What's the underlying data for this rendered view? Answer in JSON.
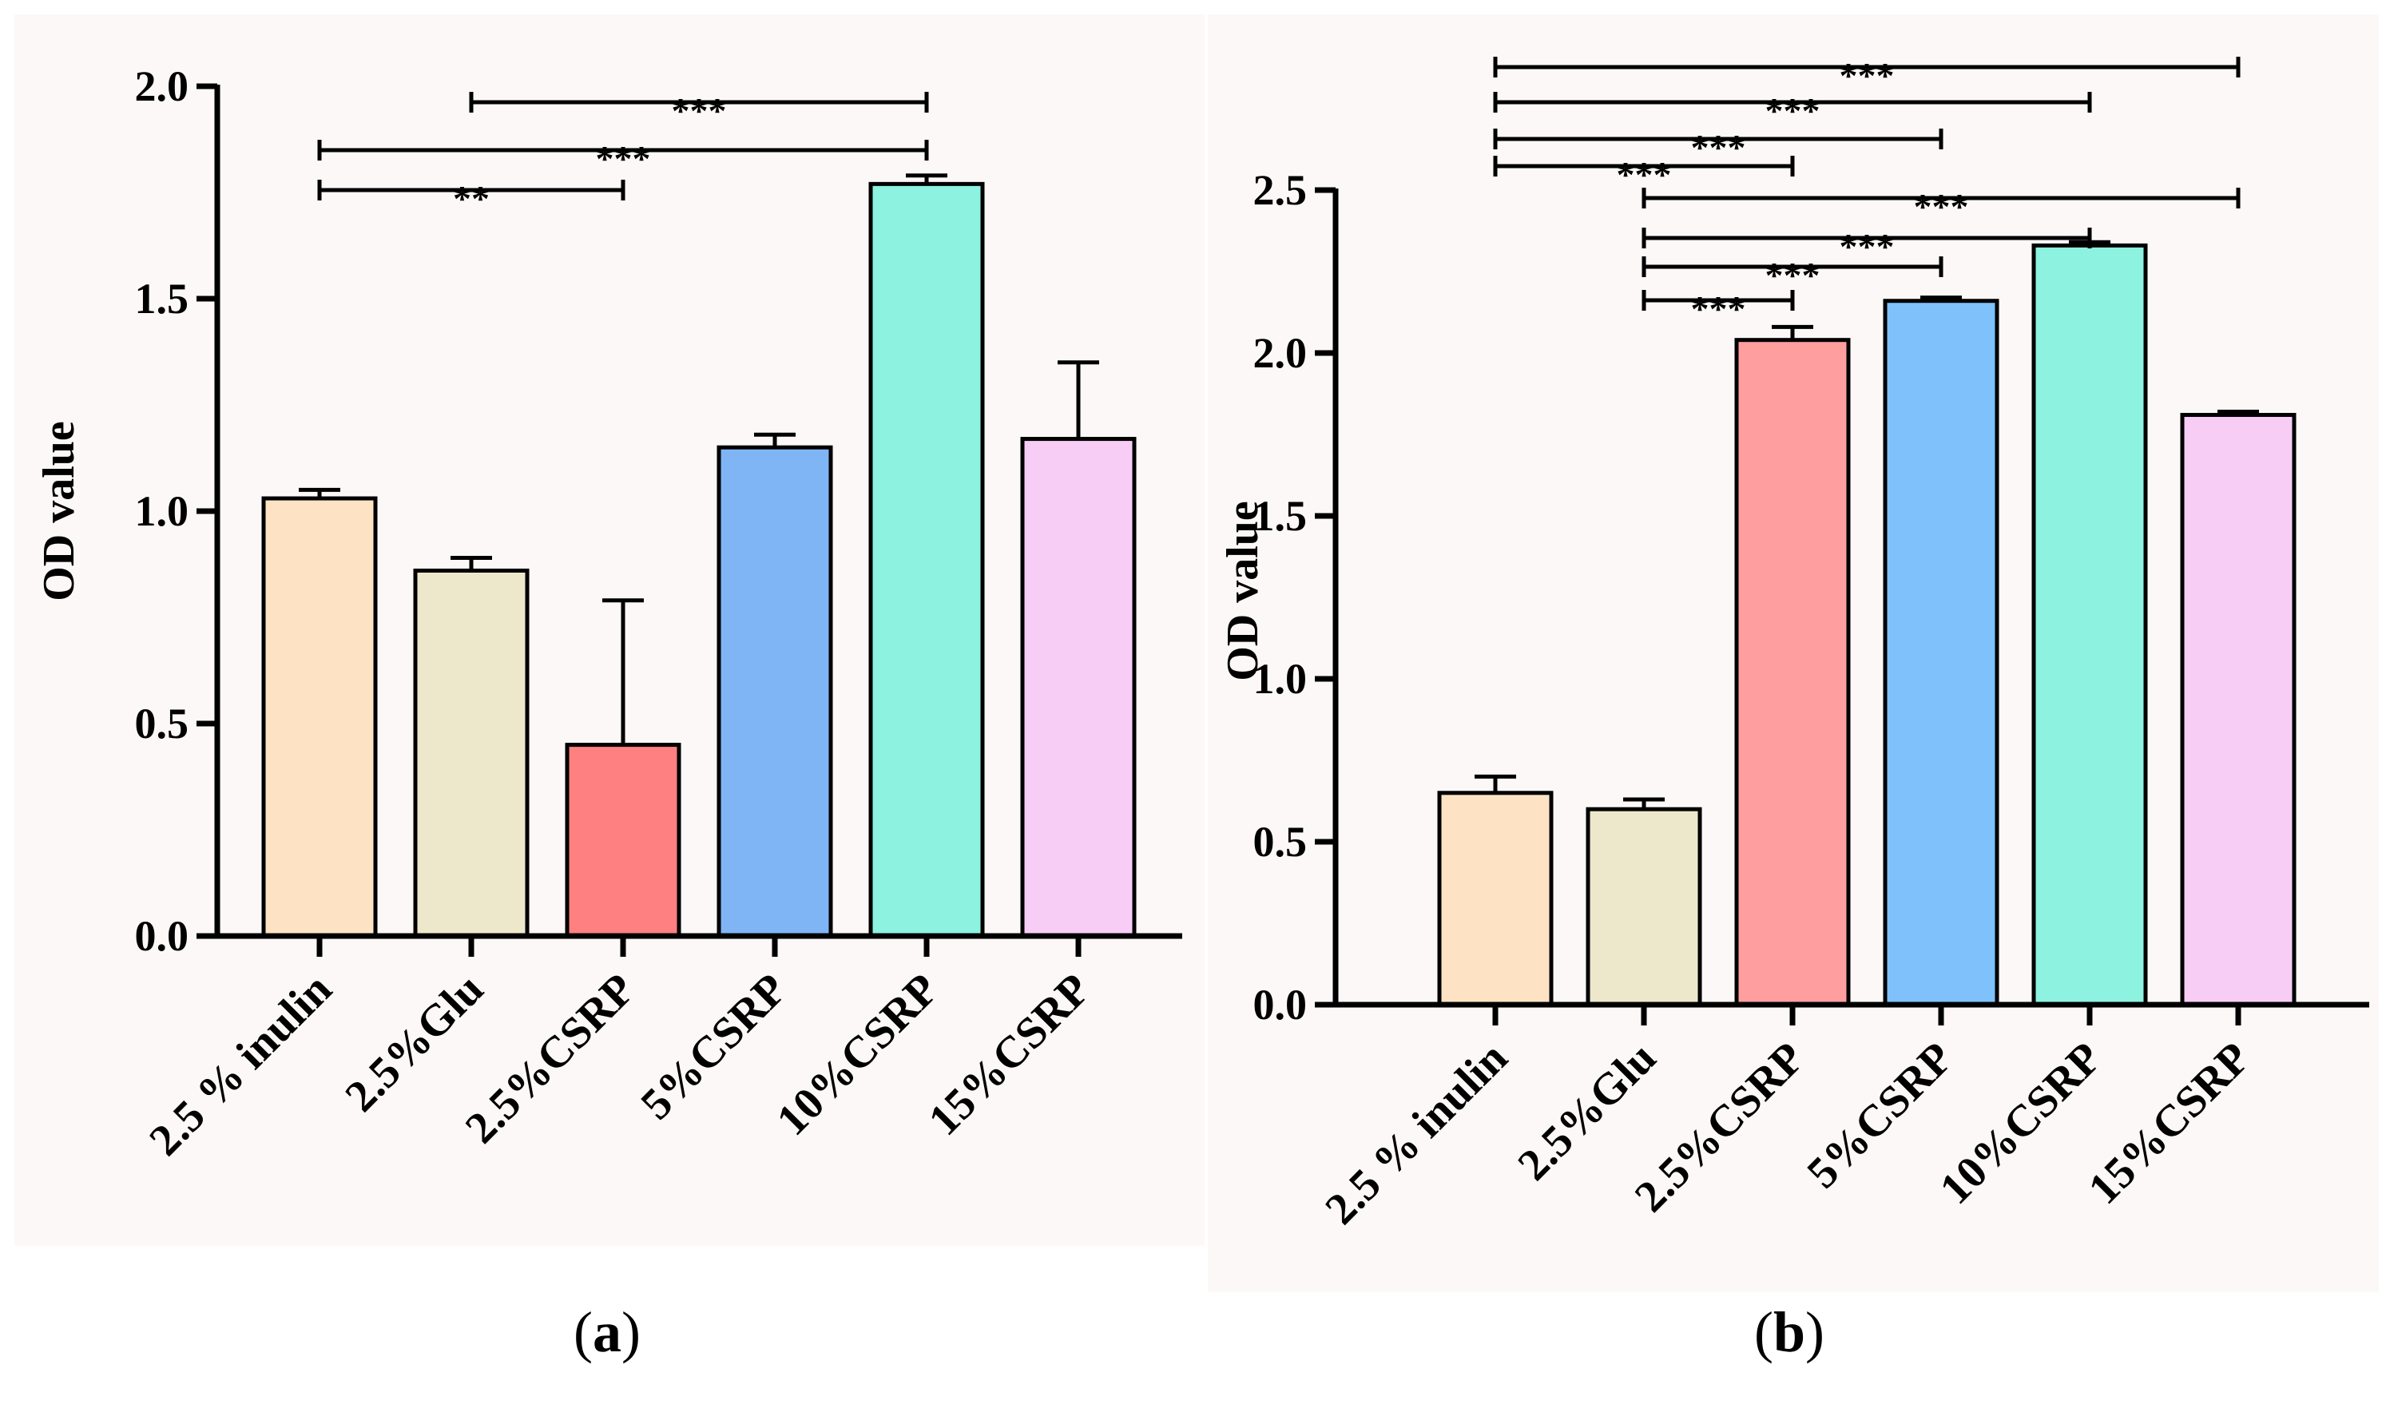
{
  "chart_data": [
    {
      "type": "bar",
      "panel_label": "a",
      "categories": [
        "2.5 % inulin",
        "2.5%Glu",
        "2.5%CSRP",
        "5%CSRP",
        "10%CSRP",
        "15%CSRP"
      ],
      "values": [
        1.03,
        0.86,
        0.45,
        1.15,
        1.77,
        1.17
      ],
      "errors": [
        0.02,
        0.03,
        0.34,
        0.03,
        0.02,
        0.18
      ],
      "colors": [
        "#fde3c4",
        "#ede8cb",
        "#fe8080",
        "#7fb5f5",
        "#8df2e0",
        "#f7cdf6"
      ],
      "ylabel": "OD value",
      "xlabel": "",
      "ylim": [
        0,
        2.0
      ],
      "yticks": [
        "0.0",
        "0.5",
        "1.0",
        "1.5",
        "2.0"
      ],
      "significance": [
        {
          "from": 0,
          "to": 2,
          "label": "**"
        },
        {
          "from": 0,
          "to": 4,
          "label": "***"
        },
        {
          "from": 1,
          "to": 4,
          "label": "***"
        }
      ]
    },
    {
      "type": "bar",
      "panel_label": "b",
      "categories": [
        "2.5 % inulin",
        "2.5%Glu",
        "2.5%CSRP",
        "5%CSRP",
        "10%CSRP",
        "15%CSRP"
      ],
      "values": [
        0.65,
        0.6,
        2.04,
        2.16,
        2.33,
        1.81
      ],
      "errors": [
        0.05,
        0.03,
        0.04,
        0.01,
        0.01,
        0.01
      ],
      "colors": [
        "#fde3c4",
        "#ede8cb",
        "#fe9e9e",
        "#7fc1fb",
        "#8df2e0",
        "#f7cdf6"
      ],
      "ylabel": "OD value",
      "xlabel": "",
      "ylim": [
        0,
        2.5
      ],
      "yticks": [
        "0.0",
        "0.5",
        "1.0",
        "1.5",
        "2.0",
        "2.5"
      ],
      "significance": [
        {
          "from": 0,
          "to": 5,
          "label": "***"
        },
        {
          "from": 0,
          "to": 4,
          "label": "***"
        },
        {
          "from": 0,
          "to": 3,
          "label": "***"
        },
        {
          "from": 0,
          "to": 2,
          "label": "***"
        },
        {
          "from": 1,
          "to": 5,
          "label": "***"
        },
        {
          "from": 1,
          "to": 4,
          "label": "***"
        },
        {
          "from": 1,
          "to": 3,
          "label": "***"
        },
        {
          "from": 1,
          "to": 2,
          "label": "***"
        }
      ]
    }
  ]
}
